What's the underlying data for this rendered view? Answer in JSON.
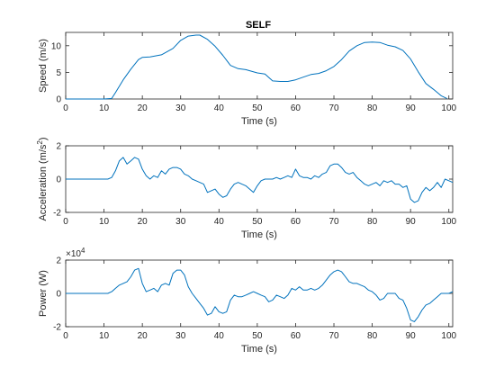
{
  "chart_data": [
    {
      "type": "line",
      "title": "SELF",
      "xlabel": "Time (s)",
      "ylabel": "Speed (m/s)",
      "xlim": [
        0,
        101
      ],
      "ylim": [
        0,
        12.5
      ],
      "xticks": [
        0,
        10,
        20,
        30,
        40,
        50,
        60,
        70,
        80,
        90,
        100
      ],
      "yticks": [
        0,
        5,
        10
      ],
      "grid": false,
      "color": "#0072BD",
      "series": [
        {
          "x": [
            0,
            10,
            12,
            13,
            15,
            17,
            19,
            20,
            22,
            25,
            28,
            30,
            32,
            34,
            35,
            37,
            39,
            41,
            43,
            45,
            47,
            50,
            52,
            54,
            56,
            58,
            60,
            62,
            64,
            66,
            68,
            70,
            72,
            74,
            76,
            78,
            80,
            82,
            84,
            86,
            88,
            90,
            92,
            94,
            96,
            98,
            99.5
          ],
          "y": [
            0,
            0,
            0.1,
            1.2,
            3.6,
            5.6,
            7.4,
            7.8,
            7.9,
            8.3,
            9.5,
            11.0,
            11.8,
            12.0,
            12.0,
            11.2,
            9.9,
            8.2,
            6.3,
            5.7,
            5.5,
            4.9,
            4.7,
            3.4,
            3.3,
            3.3,
            3.6,
            4.1,
            4.6,
            4.8,
            5.3,
            6.1,
            7.4,
            9.0,
            10.0,
            10.6,
            10.7,
            10.6,
            10.1,
            9.8,
            9.1,
            7.5,
            5.1,
            2.9,
            1.8,
            0.6,
            0.1
          ]
        }
      ]
    },
    {
      "type": "line",
      "title": "",
      "xlabel": "Time (s)",
      "ylabel": "Acceleration (m/s",
      "ylabel_superscript": "2",
      "ylabel_suffix": ")",
      "xlim": [
        0,
        101
      ],
      "ylim": [
        -2,
        2
      ],
      "xticks": [
        0,
        10,
        20,
        30,
        40,
        50,
        60,
        70,
        80,
        90,
        100
      ],
      "yticks": [
        -2,
        0,
        2
      ],
      "grid": false,
      "color": "#0072BD",
      "series": [
        {
          "x": [
            0,
            11,
            12,
            13,
            14,
            15,
            16,
            17,
            18,
            19,
            20,
            21,
            22,
            23,
            24,
            25,
            26,
            27,
            28,
            29,
            30,
            31,
            32,
            33,
            34,
            35,
            36,
            37,
            38,
            39,
            40,
            41,
            42,
            43,
            44,
            45,
            46,
            47,
            48,
            49,
            50,
            51,
            52,
            53,
            54,
            55,
            56,
            57,
            58,
            59,
            60,
            61,
            62,
            63,
            64,
            65,
            66,
            67,
            68,
            69,
            70,
            71,
            72,
            73,
            74,
            75,
            76,
            77,
            78,
            79,
            80,
            81,
            82,
            83,
            84,
            85,
            86,
            87,
            88,
            89,
            90,
            91,
            92,
            93,
            94,
            95,
            96,
            97,
            98,
            99,
            100,
            101
          ],
          "y": [
            0,
            0,
            0.1,
            0.5,
            1.1,
            1.3,
            0.9,
            1.1,
            1.3,
            1.2,
            0.6,
            0.2,
            0.0,
            0.2,
            0.1,
            0.5,
            0.3,
            0.6,
            0.7,
            0.7,
            0.6,
            0.3,
            0.2,
            0.0,
            -0.1,
            -0.2,
            -0.3,
            -0.8,
            -0.7,
            -0.6,
            -0.9,
            -1.1,
            -1.0,
            -0.6,
            -0.3,
            -0.2,
            -0.3,
            -0.4,
            -0.6,
            -0.8,
            -0.4,
            -0.1,
            0.0,
            0.0,
            0.0,
            0.1,
            0.0,
            0.1,
            0.2,
            0.1,
            0.6,
            0.2,
            0.1,
            0.1,
            0.0,
            0.2,
            0.1,
            0.3,
            0.4,
            0.8,
            0.9,
            0.9,
            0.7,
            0.4,
            0.3,
            0.4,
            0.1,
            -0.1,
            -0.3,
            -0.4,
            -0.3,
            -0.2,
            -0.4,
            -0.1,
            -0.2,
            -0.1,
            -0.3,
            -0.3,
            -0.5,
            -0.4,
            -1.2,
            -1.4,
            -1.3,
            -0.8,
            -0.5,
            -0.7,
            -0.5,
            -0.2,
            -0.5,
            0.0,
            -0.1,
            -0.2
          ]
        }
      ]
    },
    {
      "type": "line",
      "title": "",
      "xlabel": "Time (s)",
      "ylabel": "Power (W)",
      "exponent_label": "×10",
      "exponent_value": "4",
      "xlim": [
        0,
        101
      ],
      "ylim": [
        -2,
        2
      ],
      "xticks": [
        0,
        10,
        20,
        30,
        40,
        50,
        60,
        70,
        80,
        90,
        100
      ],
      "yticks": [
        -2,
        0,
        2
      ],
      "grid": false,
      "color": "#0072BD",
      "series": [
        {
          "x": [
            0,
            11,
            12,
            13,
            14,
            15,
            16,
            17,
            18,
            19,
            20,
            21,
            22,
            23,
            24,
            25,
            26,
            27,
            28,
            29,
            30,
            31,
            32,
            33,
            34,
            35,
            36,
            37,
            38,
            39,
            40,
            41,
            42,
            43,
            44,
            45,
            46,
            47,
            48,
            49,
            50,
            51,
            52,
            53,
            54,
            55,
            56,
            57,
            58,
            59,
            60,
            61,
            62,
            63,
            64,
            65,
            66,
            67,
            68,
            69,
            70,
            71,
            72,
            73,
            74,
            75,
            76,
            77,
            78,
            79,
            80,
            81,
            82,
            83,
            84,
            85,
            86,
            87,
            88,
            89,
            90,
            91,
            92,
            93,
            94,
            95,
            96,
            97,
            98,
            99,
            100,
            101
          ],
          "y": [
            0,
            0,
            0.1,
            0.3,
            0.5,
            0.6,
            0.7,
            1.0,
            1.4,
            1.5,
            0.6,
            0.1,
            0.2,
            0.3,
            0.1,
            0.5,
            0.6,
            0.5,
            1.2,
            1.4,
            1.4,
            1.1,
            0.4,
            0.0,
            -0.3,
            -0.6,
            -0.9,
            -1.3,
            -1.2,
            -0.8,
            -1.1,
            -1.2,
            -1.1,
            -0.4,
            -0.1,
            -0.2,
            -0.2,
            -0.1,
            0.0,
            0.1,
            0.0,
            -0.1,
            -0.2,
            -0.5,
            -0.4,
            -0.1,
            -0.2,
            -0.3,
            -0.1,
            0.3,
            0.2,
            0.4,
            0.2,
            0.2,
            0.3,
            0.2,
            0.3,
            0.5,
            0.8,
            1.1,
            1.3,
            1.4,
            1.3,
            1.0,
            0.7,
            0.6,
            0.6,
            0.5,
            0.4,
            0.2,
            0.1,
            -0.1,
            -0.4,
            -0.3,
            0.0,
            0.0,
            0.0,
            -0.3,
            -0.4,
            -0.9,
            -1.6,
            -1.7,
            -1.4,
            -1.0,
            -0.7,
            -0.6,
            -0.4,
            -0.2,
            0.0,
            0.0,
            0.0,
            0.1
          ]
        }
      ]
    }
  ]
}
